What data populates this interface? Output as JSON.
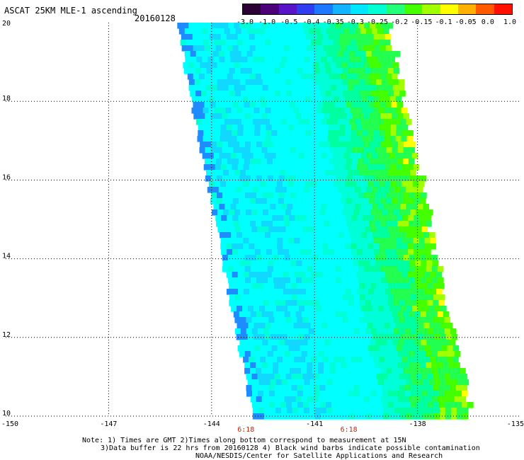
{
  "header": {
    "title": "ASCAT 25KM MLE-1 ascending",
    "date": "20160128"
  },
  "colorbar": {
    "labels": [
      "-3.0",
      "-1.0",
      "-0.5",
      "-0.4",
      "-0.35",
      "-0.3",
      "-0.25",
      "-0.2",
      "-0.15",
      "-0.1",
      "-0.05",
      "0.0",
      "1.0"
    ],
    "colors": [
      "#2b0033",
      "#4b007a",
      "#5a14c8",
      "#2f3cf0",
      "#1e78ff",
      "#12b4ff",
      "#00e6ff",
      "#00ffd2",
      "#22ff78",
      "#44ff00",
      "#a0ff00",
      "#ffff00",
      "#ffb000",
      "#ff5a00",
      "#ff1000"
    ]
  },
  "chart_data": {
    "type": "heatmap",
    "x_ticks": [
      "-150",
      "-147",
      "-144",
      "-141",
      "-138",
      "-135"
    ],
    "y_ticks": [
      "20",
      "18",
      "16",
      "14",
      "12",
      "10"
    ],
    "xlim": [
      -150,
      -135
    ],
    "ylim": [
      10,
      20
    ],
    "grid": true,
    "time_labels": [
      {
        "lon": -143.0,
        "text": "6:18"
      },
      {
        "lon": -140.0,
        "text": "6:18"
      }
    ],
    "swath_left_edge": [
      [
        -145.0,
        20.0
      ],
      [
        -142.8,
        10.0
      ]
    ],
    "swath_right_edge": [
      [
        -138.9,
        20.0
      ],
      [
        -136.5,
        10.0
      ]
    ],
    "swath_colors": [
      "#00ffff",
      "#00ffd8",
      "#00ffa0",
      "#22ff50",
      "#44ff00",
      "#a0ff00",
      "#ffff00"
    ]
  },
  "notes": {
    "line1": "Note: 1) Times are GMT 2)Times along bottom correspond to measurement at 15N",
    "line2": "3)Data buffer is 22 hrs from 20160128 4) Black wind barbs indicate possible contamination",
    "line3": "NOAA/NESDIS/Center for Satellite Applications and Research"
  }
}
